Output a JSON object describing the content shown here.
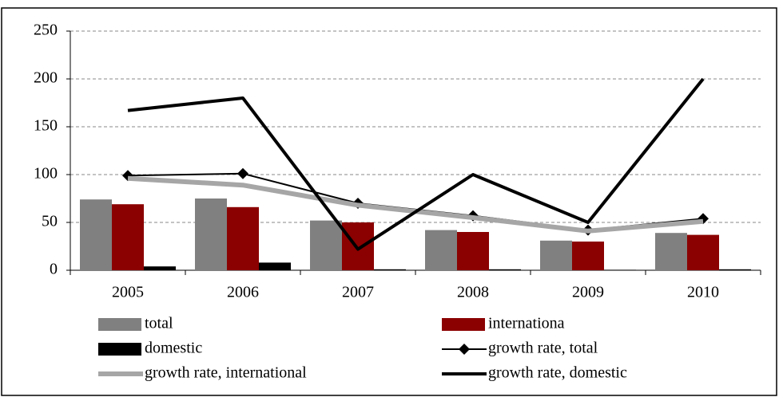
{
  "chart_data": {
    "type": "bar",
    "categories": [
      "2005",
      "2006",
      "2007",
      "2008",
      "2009",
      "2010"
    ],
    "series": [
      {
        "name": "total",
        "type": "bar",
        "color": "#808080",
        "values": [
          74,
          75,
          52,
          42,
          31,
          39
        ]
      },
      {
        "name": "internationa",
        "type": "bar",
        "color": "#8b0000",
        "values": [
          69,
          66,
          50,
          40,
          30,
          37
        ]
      },
      {
        "name": "domestic",
        "type": "bar",
        "color": "#000000",
        "values": [
          4,
          8,
          1,
          1,
          0.5,
          1
        ]
      },
      {
        "name": "growth rate, total",
        "type": "line",
        "color": "#000000",
        "marker": "diamond",
        "line_width": 2,
        "values": [
          99,
          101,
          70,
          57,
          42,
          54
        ]
      },
      {
        "name": "growth rate, international",
        "type": "line",
        "color": "#a6a6a6",
        "line_width": 6,
        "values": [
          96,
          89,
          68,
          55,
          41,
          51
        ]
      },
      {
        "name": "growth rate, domestic",
        "type": "line",
        "color": "#000000",
        "line_width": 4,
        "values": [
          167,
          180,
          22,
          100,
          50,
          200
        ]
      }
    ],
    "ylim": [
      0,
      250
    ],
    "yticks": [
      0,
      50,
      100,
      150,
      200,
      250
    ],
    "grid": true,
    "legend": "bottom"
  }
}
